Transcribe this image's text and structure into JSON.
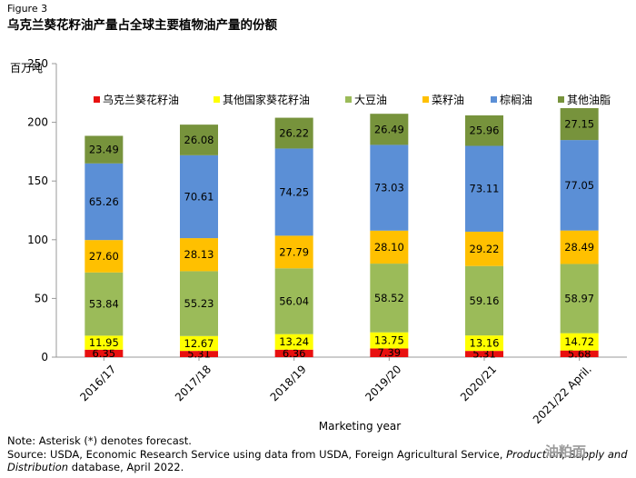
{
  "figure_label": "Figure 3",
  "title": "乌克兰葵花籽油产量占全球主要植物油产量的份额",
  "unit_label": "百万吨",
  "notes": {
    "note": "Note: Asterisk (*) denotes forecast.",
    "source_start": "Source: USDA, Economic Research Service using data from USDA, Foreign Agricultural Service,",
    "source_italic_1": "Production, Supply and",
    "source_italic_2": "Distribution",
    "source_end": "database, April 2022."
  },
  "watermark": "油粕面",
  "chart_data": {
    "type": "bar",
    "stacked": true,
    "title": "乌克兰葵花籽油产量占全球主要植物油产量的份额",
    "xlabel": "Marketing year",
    "ylabel": "百万吨",
    "ylim": [
      0,
      250
    ],
    "yticks": [
      0,
      50,
      100,
      150,
      200,
      250
    ],
    "legend_position": "top",
    "categories": [
      "2016/17",
      "2017/18",
      "2018/19",
      "2019/20",
      "2020/21",
      "2021/22 April."
    ],
    "series": [
      {
        "name": "乌克兰葵花籽油",
        "color": "#e8100f",
        "values": [
          6.35,
          5.31,
          6.36,
          7.39,
          5.31,
          5.68
        ]
      },
      {
        "name": "其他国家葵花籽油",
        "color": "#ffff00",
        "values": [
          11.95,
          12.67,
          13.24,
          13.75,
          13.16,
          14.72
        ]
      },
      {
        "name": "大豆油",
        "color": "#9bbb59",
        "values": [
          53.84,
          55.23,
          56.04,
          58.52,
          59.16,
          58.97
        ]
      },
      {
        "name": "菜籽油",
        "color": "#ffc000",
        "values": [
          27.6,
          28.13,
          27.79,
          28.1,
          29.22,
          28.49
        ]
      },
      {
        "name": "棕榈油",
        "color": "#5b8fd6",
        "values": [
          65.26,
          70.61,
          74.25,
          73.03,
          73.11,
          77.05
        ]
      },
      {
        "name": "其他油脂",
        "color": "#77933c",
        "values": [
          23.49,
          26.08,
          26.22,
          26.49,
          25.96,
          27.15
        ]
      }
    ]
  }
}
